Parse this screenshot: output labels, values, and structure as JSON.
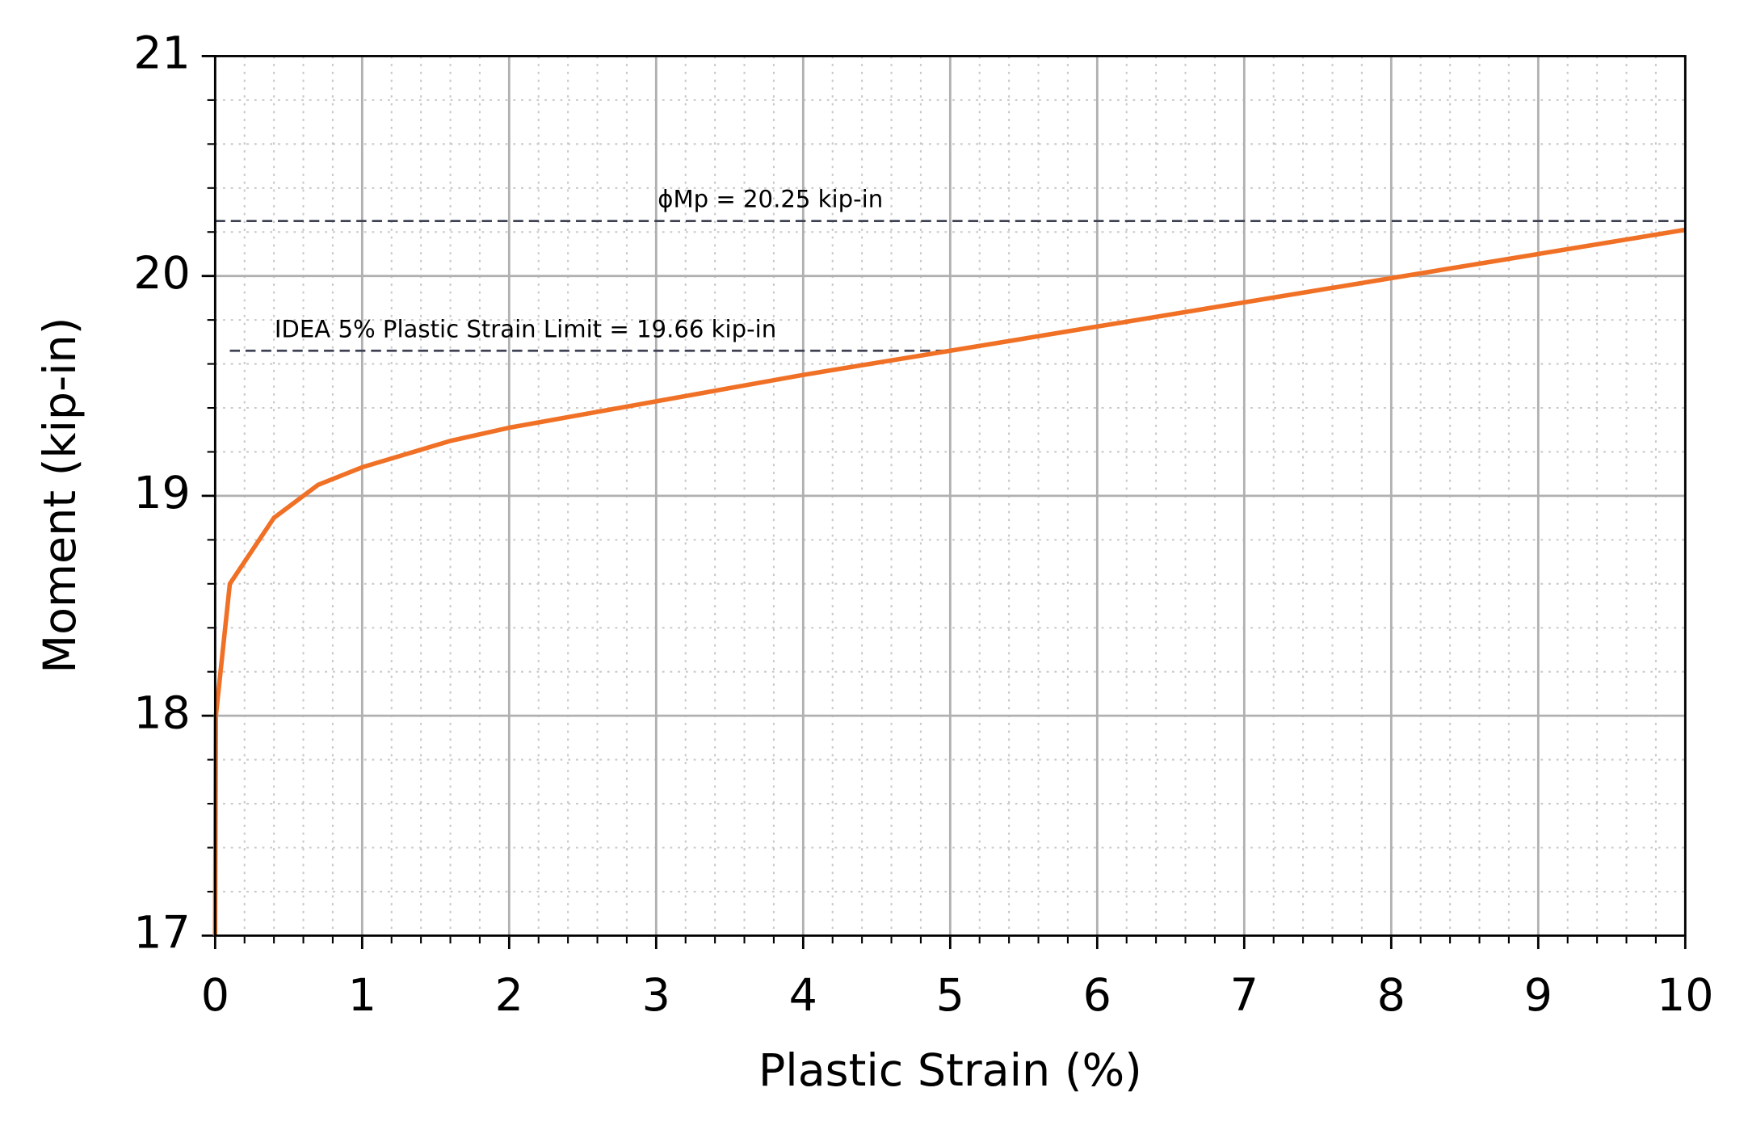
{
  "chart_data": {
    "type": "line",
    "x_label": "Plastic Strain (%)",
    "y_label": "Moment (kip-in)",
    "x": [
      0,
      0.005,
      0.1,
      0.4,
      0.7,
      1.0,
      1.6,
      2.0,
      3,
      4,
      5,
      6,
      7,
      8,
      9,
      10
    ],
    "series": [
      {
        "color": "#f07025",
        "values": [
          17,
          18.0,
          18.6,
          18.9,
          19.05,
          19.13,
          19.25,
          19.31,
          19.43,
          19.55,
          19.66,
          19.77,
          19.88,
          19.99,
          20.1,
          20.21
        ]
      }
    ],
    "reference_lines": [
      {
        "label": "ϕMp = 20.25 kip-in",
        "y": 20.25,
        "x0": 0,
        "x1": 10,
        "color": "#3d4152"
      },
      {
        "label": "IDEA 5% Plastic Strain Limit = 19.66 kip-in",
        "y": 19.66,
        "x0": 0.1,
        "x1": 5,
        "color": "#3d4152"
      }
    ],
    "xlim": [
      0,
      10
    ],
    "xticks": [
      0,
      1,
      2,
      3,
      4,
      5,
      6,
      7,
      8,
      9,
      10
    ],
    "ylim": [
      17,
      21
    ],
    "yticks": [
      17,
      18,
      19,
      20,
      21
    ],
    "grid": true,
    "minor_divisions": 5
  }
}
